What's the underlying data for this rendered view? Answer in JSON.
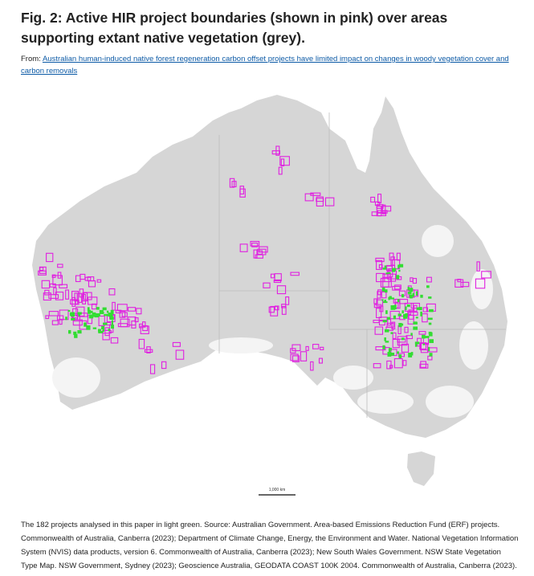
{
  "figure": {
    "title": "Fig. 2: Active HIR project boundaries (shown in pink) over areas supporting extant native vegetation (grey).",
    "source_prefix": "From:",
    "source_link": "Australian human-induced native forest regeneration carbon offset projects have limited impact on changes in woody vegetation cover and carbon removals",
    "scale_label": "1,000 km",
    "caption": "The 182 projects analysed in this paper in light green. Source: Australian Government. Area-based Emissions Reduction Fund (ERF) projects. Commonwealth of Australia, Canberra (2023); Department of Climate Change, Energy, the Environment and Water. National Vegetation Information System (NVIS) data products, version 6. Commonwealth of Australia, Canberra (2023); New South Wales Government. NSW State Vegetation Type Map. NSW Government, Sydney (2023); Geoscience Australia, GEODATA COAST 100K 2004. Commonwealth of Australia, Canberra (2023)."
  }
}
